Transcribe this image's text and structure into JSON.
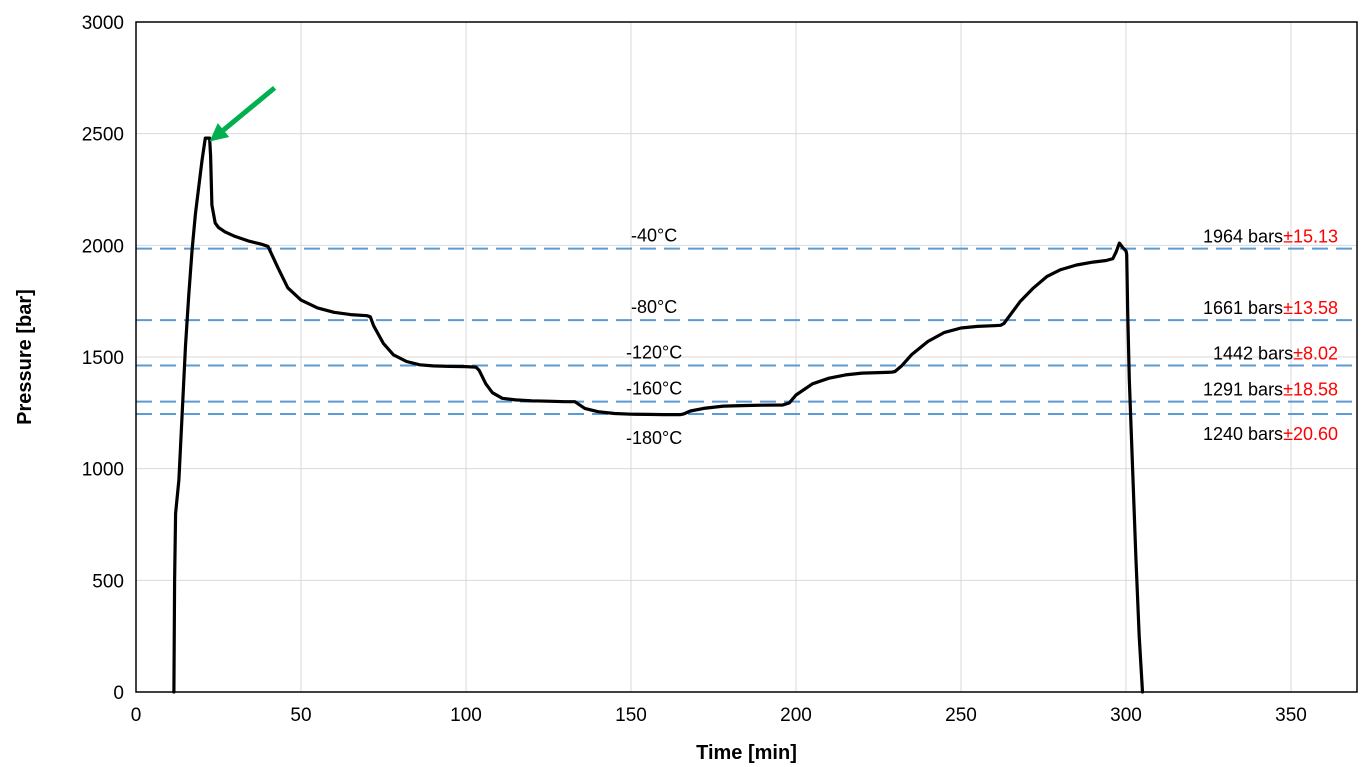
{
  "chart_data": {
    "type": "line",
    "xlabel": "Time [min]",
    "ylabel": "Pressure [bar]",
    "xlim": [
      0,
      370
    ],
    "ylim": [
      0,
      3000
    ],
    "xticks": [
      "0",
      "50",
      "100",
      "150",
      "200",
      "250",
      "300",
      "350"
    ],
    "yticks": [
      "0",
      "500",
      "1000",
      "1500",
      "2000",
      "2500",
      "3000"
    ],
    "grid": true,
    "series": [
      {
        "color": "#000000",
        "x": [
          11.5,
          11.7,
          12,
          13,
          14,
          15,
          16,
          17,
          18,
          19,
          20,
          21,
          22.3,
          22.6,
          23,
          24,
          25,
          27,
          30,
          34,
          38,
          40,
          43,
          46,
          50,
          55,
          60,
          65,
          70,
          71,
          72,
          75,
          78,
          82,
          86,
          90,
          95,
          100,
          103,
          104,
          106,
          108,
          111,
          115,
          120,
          125,
          130,
          133,
          134,
          136,
          140,
          145,
          150,
          155,
          160,
          165,
          166,
          168,
          172,
          178,
          185,
          190,
          196,
          198,
          200,
          205,
          210,
          215,
          220,
          225,
          229,
          230,
          232,
          235,
          240,
          245,
          250,
          255,
          260,
          262,
          263,
          265,
          268,
          272,
          276,
          280,
          285,
          290,
          294,
          296,
          297,
          298,
          299,
          300,
          300.2,
          300.5,
          301,
          302,
          303,
          304,
          305
        ],
        "values": [
          0,
          500,
          800,
          950,
          1250,
          1550,
          1780,
          1980,
          2140,
          2260,
          2380,
          2480,
          2480,
          2400,
          2180,
          2100,
          2080,
          2060,
          2040,
          2020,
          2005,
          1995,
          1900,
          1810,
          1755,
          1720,
          1700,
          1690,
          1685,
          1680,
          1640,
          1560,
          1510,
          1480,
          1465,
          1460,
          1458,
          1457,
          1455,
          1440,
          1380,
          1340,
          1315,
          1308,
          1304,
          1302,
          1300,
          1300,
          1290,
          1270,
          1255,
          1247,
          1244,
          1243,
          1242,
          1242,
          1245,
          1258,
          1270,
          1280,
          1283,
          1284,
          1285,
          1295,
          1330,
          1380,
          1405,
          1420,
          1428,
          1430,
          1432,
          1435,
          1460,
          1510,
          1570,
          1610,
          1630,
          1637,
          1640,
          1642,
          1650,
          1690,
          1750,
          1810,
          1860,
          1890,
          1912,
          1925,
          1932,
          1940,
          1970,
          2010,
          1990,
          1975,
          1960,
          1700,
          1400,
          1000,
          600,
          250,
          0
        ]
      }
    ],
    "reference_lines": [
      {
        "y": 1985,
        "label": "-40°C",
        "label_x": 157,
        "label_pos": "above",
        "value_text": "1964 bars",
        "err_text": "±15.13"
      },
      {
        "y": 1665,
        "label": "-80°C",
        "label_x": 157,
        "label_pos": "above",
        "value_text": "1661 bars",
        "err_text": "±13.58"
      },
      {
        "y": 1462,
        "label": "-120°C",
        "label_x": 157,
        "label_pos": "above",
        "value_text": "1442 bars",
        "err_text": "±8.02"
      },
      {
        "y": 1300,
        "label": "-160°C",
        "label_x": 157,
        "label_pos": "above",
        "value_text": "1291 bars",
        "err_text": "±18.58"
      },
      {
        "y": 1245,
        "label": "-180°C",
        "label_x": 157,
        "label_pos": "below",
        "value_text": "1240 bars",
        "err_text": "±20.60"
      }
    ],
    "reference_line_color": "#5b9bd5",
    "arrow": {
      "from": [
        42,
        2705
      ],
      "to": [
        22.3,
        2465
      ],
      "color": "#00b050"
    }
  }
}
